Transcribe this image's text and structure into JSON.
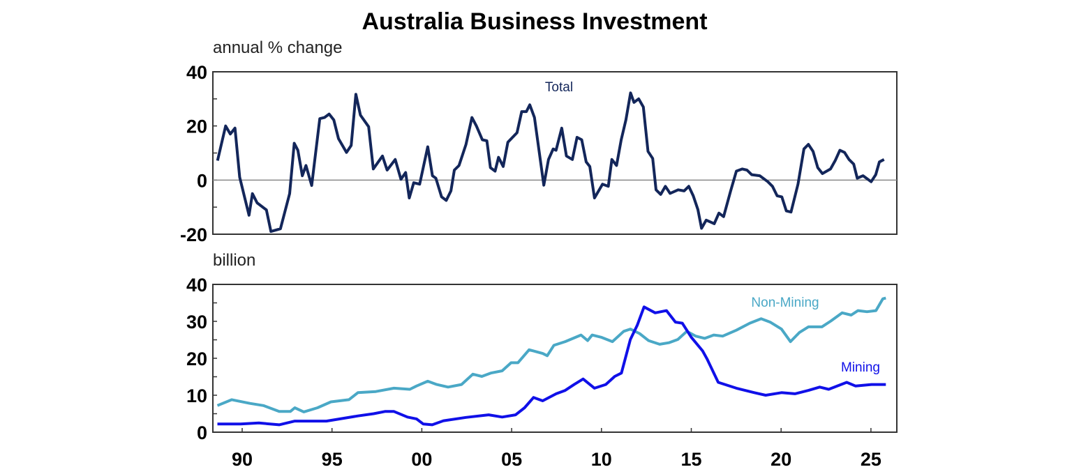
{
  "chart_data": [
    {
      "type": "line",
      "title": "Australia Business Investment",
      "ylabel": "annual % change",
      "ylim": [
        -20,
        40
      ],
      "yticks": [
        "40",
        "20",
        "0",
        "-20"
      ],
      "ytick_values": [
        40,
        20,
        0,
        -20
      ],
      "grid": false,
      "zero_line": true,
      "series": [
        {
          "name": "Total",
          "color": "#13265a",
          "x": [
            1988.63,
            1989.08,
            1989.34,
            1989.6,
            1989.86,
            1990.38,
            1990.57,
            1990.83,
            1991.35,
            1991.6,
            1992.13,
            1992.64,
            1992.9,
            1993.1,
            1993.35,
            1993.55,
            1993.87,
            1994.32,
            1994.58,
            1994.84,
            1995.1,
            1995.36,
            1995.81,
            1996.07,
            1996.33,
            1996.58,
            1997.04,
            1997.3,
            1997.81,
            1998.07,
            1998.52,
            1998.84,
            1999.1,
            1999.3,
            1999.55,
            1999.88,
            2000.33,
            2000.59,
            2000.78,
            2001.1,
            2001.36,
            2001.62,
            2001.81,
            2002.07,
            2002.46,
            2002.79,
            2003.04,
            2003.37,
            2003.62,
            2003.82,
            2004.08,
            2004.27,
            2004.53,
            2004.79,
            2005.3,
            2005.56,
            2005.82,
            2006.01,
            2006.27,
            2006.79,
            2007.05,
            2007.31,
            2007.47,
            2007.79,
            2008.05,
            2008.38,
            2008.64,
            2008.9,
            2009.15,
            2009.35,
            2009.61,
            2010.06,
            2010.38,
            2010.58,
            2010.84,
            2011.1,
            2011.36,
            2011.62,
            2011.81,
            2012.07,
            2012.33,
            2012.59,
            2012.85,
            2013.04,
            2013.3,
            2013.56,
            2013.82,
            2014.27,
            2014.6,
            2014.86,
            2015.11,
            2015.37,
            2015.57,
            2015.83,
            2016.28,
            2016.54,
            2016.8,
            2017.19,
            2017.51,
            2017.84,
            2018.1,
            2018.36,
            2018.81,
            2019.26,
            2019.52,
            2019.78,
            2020.04,
            2020.29,
            2020.55,
            2020.94,
            2021.27,
            2021.52,
            2021.78,
            2022.04,
            2022.3,
            2022.75,
            2023.01,
            2023.27,
            2023.53,
            2023.78,
            2024.04,
            2024.24,
            2024.56,
            2025.01,
            2025.27,
            2025.47,
            2025.73
          ],
          "values": [
            7.2,
            20,
            17,
            19.2,
            1.1,
            -13,
            -5,
            -8.4,
            -11,
            -19,
            -18,
            -5,
            13.6,
            11,
            1.6,
            5.4,
            -2,
            22.7,
            23.1,
            24.4,
            22.2,
            15.3,
            10.2,
            12.8,
            31.7,
            24,
            19.7,
            4.1,
            8.9,
            3.7,
            7.6,
            0.3,
            2.8,
            -6.6,
            -1,
            -1.5,
            12.3,
            1.6,
            0.7,
            -6.2,
            -7.5,
            -4,
            3.7,
            5.4,
            13.2,
            23.1,
            20,
            14.9,
            14.5,
            4.6,
            3.3,
            8.4,
            5,
            14,
            17.5,
            25.3,
            25.3,
            27.8,
            23.1,
            -1.9,
            7.6,
            11.5,
            11,
            19.2,
            8.9,
            7.6,
            15.8,
            14.9,
            6.7,
            5,
            -6.6,
            -1.5,
            -2.3,
            7.6,
            5.4,
            14.9,
            22.2,
            32.2,
            28.7,
            30,
            27,
            10.6,
            8,
            -3.6,
            -5.3,
            -2.3,
            -4.9,
            -3.6,
            -4,
            -2.3,
            -5.8,
            -10.9,
            -17.8,
            -14.8,
            -16.1,
            -12.2,
            -13.5,
            -4,
            3.3,
            4.1,
            3.7,
            2,
            1.6,
            -0.6,
            -2.3,
            -5.8,
            -6.2,
            -11.4,
            -11.8,
            -1.5,
            11.5,
            13.2,
            10.6,
            4.6,
            2.4,
            4.1,
            7.2,
            11,
            10.2,
            7.6,
            5.9,
            0.7,
            1.6,
            -0.6,
            2,
            6.7,
            7.6
          ]
        }
      ]
    },
    {
      "type": "line",
      "ylabel": "billion",
      "ylim": [
        0,
        40
      ],
      "yticks": [
        "40",
        "30",
        "20",
        "10",
        "0"
      ],
      "ytick_values": [
        40,
        30,
        20,
        10,
        0
      ],
      "xlim": [
        1988.5,
        2026.5
      ],
      "xticks": [
        "90",
        "95",
        "00",
        "05",
        "10",
        "15",
        "20",
        "25"
      ],
      "xtick_values": [
        1990,
        1995,
        2000,
        2005,
        2010,
        2015,
        2020,
        2025
      ],
      "grid": false,
      "series": [
        {
          "name": "Non-Mining",
          "color": "#4aa8c6",
          "x": [
            1988.62,
            1989.42,
            1990.43,
            1991.18,
            1992.06,
            1992.68,
            1992.93,
            1993.43,
            1994.19,
            1994.94,
            1995.94,
            1996.44,
            1997.44,
            1998.45,
            1999.33,
            1999.7,
            2000.33,
            2000.83,
            2001.46,
            2002.21,
            2002.84,
            2003.34,
            2003.84,
            2004.47,
            2004.97,
            2005.35,
            2005.97,
            2006.73,
            2006.98,
            2007.35,
            2007.98,
            2008.86,
            2009.23,
            2009.48,
            2009.98,
            2010.61,
            2011.24,
            2011.61,
            2012.12,
            2012.62,
            2013.24,
            2013.75,
            2014.25,
            2014.75,
            2015.25,
            2015.75,
            2016.25,
            2016.75,
            2017.51,
            2018.26,
            2018.89,
            2019.39,
            2020.02,
            2020.52,
            2021.02,
            2021.52,
            2022.27,
            2022.77,
            2023.4,
            2023.9,
            2024.28,
            2024.78,
            2025.28,
            2025.66,
            2025.83
          ],
          "values": [
            7.2,
            8.8,
            7.8,
            7.2,
            5.6,
            5.6,
            6.6,
            5.5,
            6.6,
            8.2,
            8.8,
            10.7,
            11,
            11.9,
            11.6,
            12.5,
            13.8,
            12.9,
            12.2,
            12.9,
            15.7,
            15.1,
            16,
            16.6,
            18.8,
            18.8,
            22.3,
            21.3,
            20.7,
            23.5,
            24.5,
            26.3,
            24.8,
            26.3,
            25.7,
            24.5,
            27.3,
            27.9,
            26.7,
            24.8,
            23.8,
            24.2,
            25.1,
            27.3,
            26,
            25.4,
            26.3,
            26,
            27.6,
            29.5,
            30.7,
            29.8,
            27.9,
            24.5,
            27,
            28.5,
            28.5,
            30.1,
            32.3,
            31.7,
            32.9,
            32.6,
            32.9,
            36.1,
            36.3
          ]
        },
        {
          "name": "Mining",
          "color": "#1010e8",
          "x": [
            1988.62,
            1989.92,
            1990.93,
            1992.06,
            1992.93,
            1994.69,
            1995.69,
            1996.44,
            1997.32,
            1997.95,
            1998.45,
            1999.2,
            1999.7,
            2000.08,
            2000.58,
            2001.21,
            2002.46,
            2003.72,
            2004.47,
            2005.22,
            2005.72,
            2006.22,
            2006.73,
            2007.48,
            2007.98,
            2008.48,
            2008.98,
            2009.61,
            2010.24,
            2010.74,
            2011.11,
            2011.61,
            2011.99,
            2012.37,
            2012.99,
            2013.62,
            2014.12,
            2014.5,
            2015.0,
            2015.63,
            2015.88,
            2016.5,
            2017.51,
            2018.51,
            2019.14,
            2020.02,
            2020.77,
            2021.52,
            2022.15,
            2022.65,
            2023.65,
            2024.15,
            2025.03,
            2025.83
          ],
          "values": [
            2.2,
            2.2,
            2.5,
            2.0,
            3.0,
            3.0,
            3.8,
            4.4,
            5,
            5.6,
            5.6,
            4.1,
            3.6,
            2.2,
            2.0,
            3.1,
            4.0,
            4.7,
            4.1,
            4.7,
            6.6,
            9.4,
            8.5,
            10.4,
            11.3,
            12.9,
            14.4,
            11.9,
            12.9,
            15.1,
            16,
            25.1,
            28.9,
            33.9,
            32.3,
            32.9,
            29.8,
            29.5,
            25.7,
            22,
            19.8,
            13.5,
            11.9,
            10.7,
            10,
            10.7,
            10.4,
            11.3,
            12.2,
            11.6,
            13.5,
            12.5,
            12.9,
            12.9
          ]
        }
      ]
    }
  ]
}
